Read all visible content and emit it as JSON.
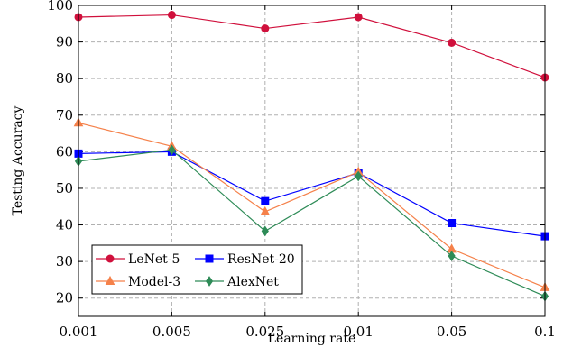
{
  "chart_data": {
    "type": "line",
    "xlabel": "Learning rate",
    "ylabel": "Testing Accuracy",
    "categories": [
      "0.001",
      "0.005",
      "0.025",
      "0.01",
      "0.05",
      "0.1"
    ],
    "ylim": [
      15,
      100
    ],
    "yticks": [
      20,
      30,
      40,
      50,
      60,
      70,
      80,
      90,
      100
    ],
    "grid": true,
    "legend_position": "bottom-left",
    "series": [
      {
        "name": "LeNet-5",
        "color": "#d0103c",
        "marker": "circle",
        "values": [
          96.8,
          97.4,
          93.7,
          96.8,
          89.8,
          80.3
        ]
      },
      {
        "name": "ResNet-20",
        "color": "#0000ff",
        "marker": "square",
        "values": [
          59.5,
          60.0,
          46.5,
          54.2,
          40.5,
          36.9
        ]
      },
      {
        "name": "Model-3",
        "color": "#f5814a",
        "marker": "triangle",
        "values": [
          67.9,
          61.5,
          43.6,
          54.5,
          33.4,
          22.9
        ]
      },
      {
        "name": "AlexNet",
        "color": "#2e8b57",
        "marker": "diamond",
        "values": [
          57.4,
          60.5,
          38.3,
          53.3,
          31.5,
          20.5
        ]
      }
    ]
  }
}
